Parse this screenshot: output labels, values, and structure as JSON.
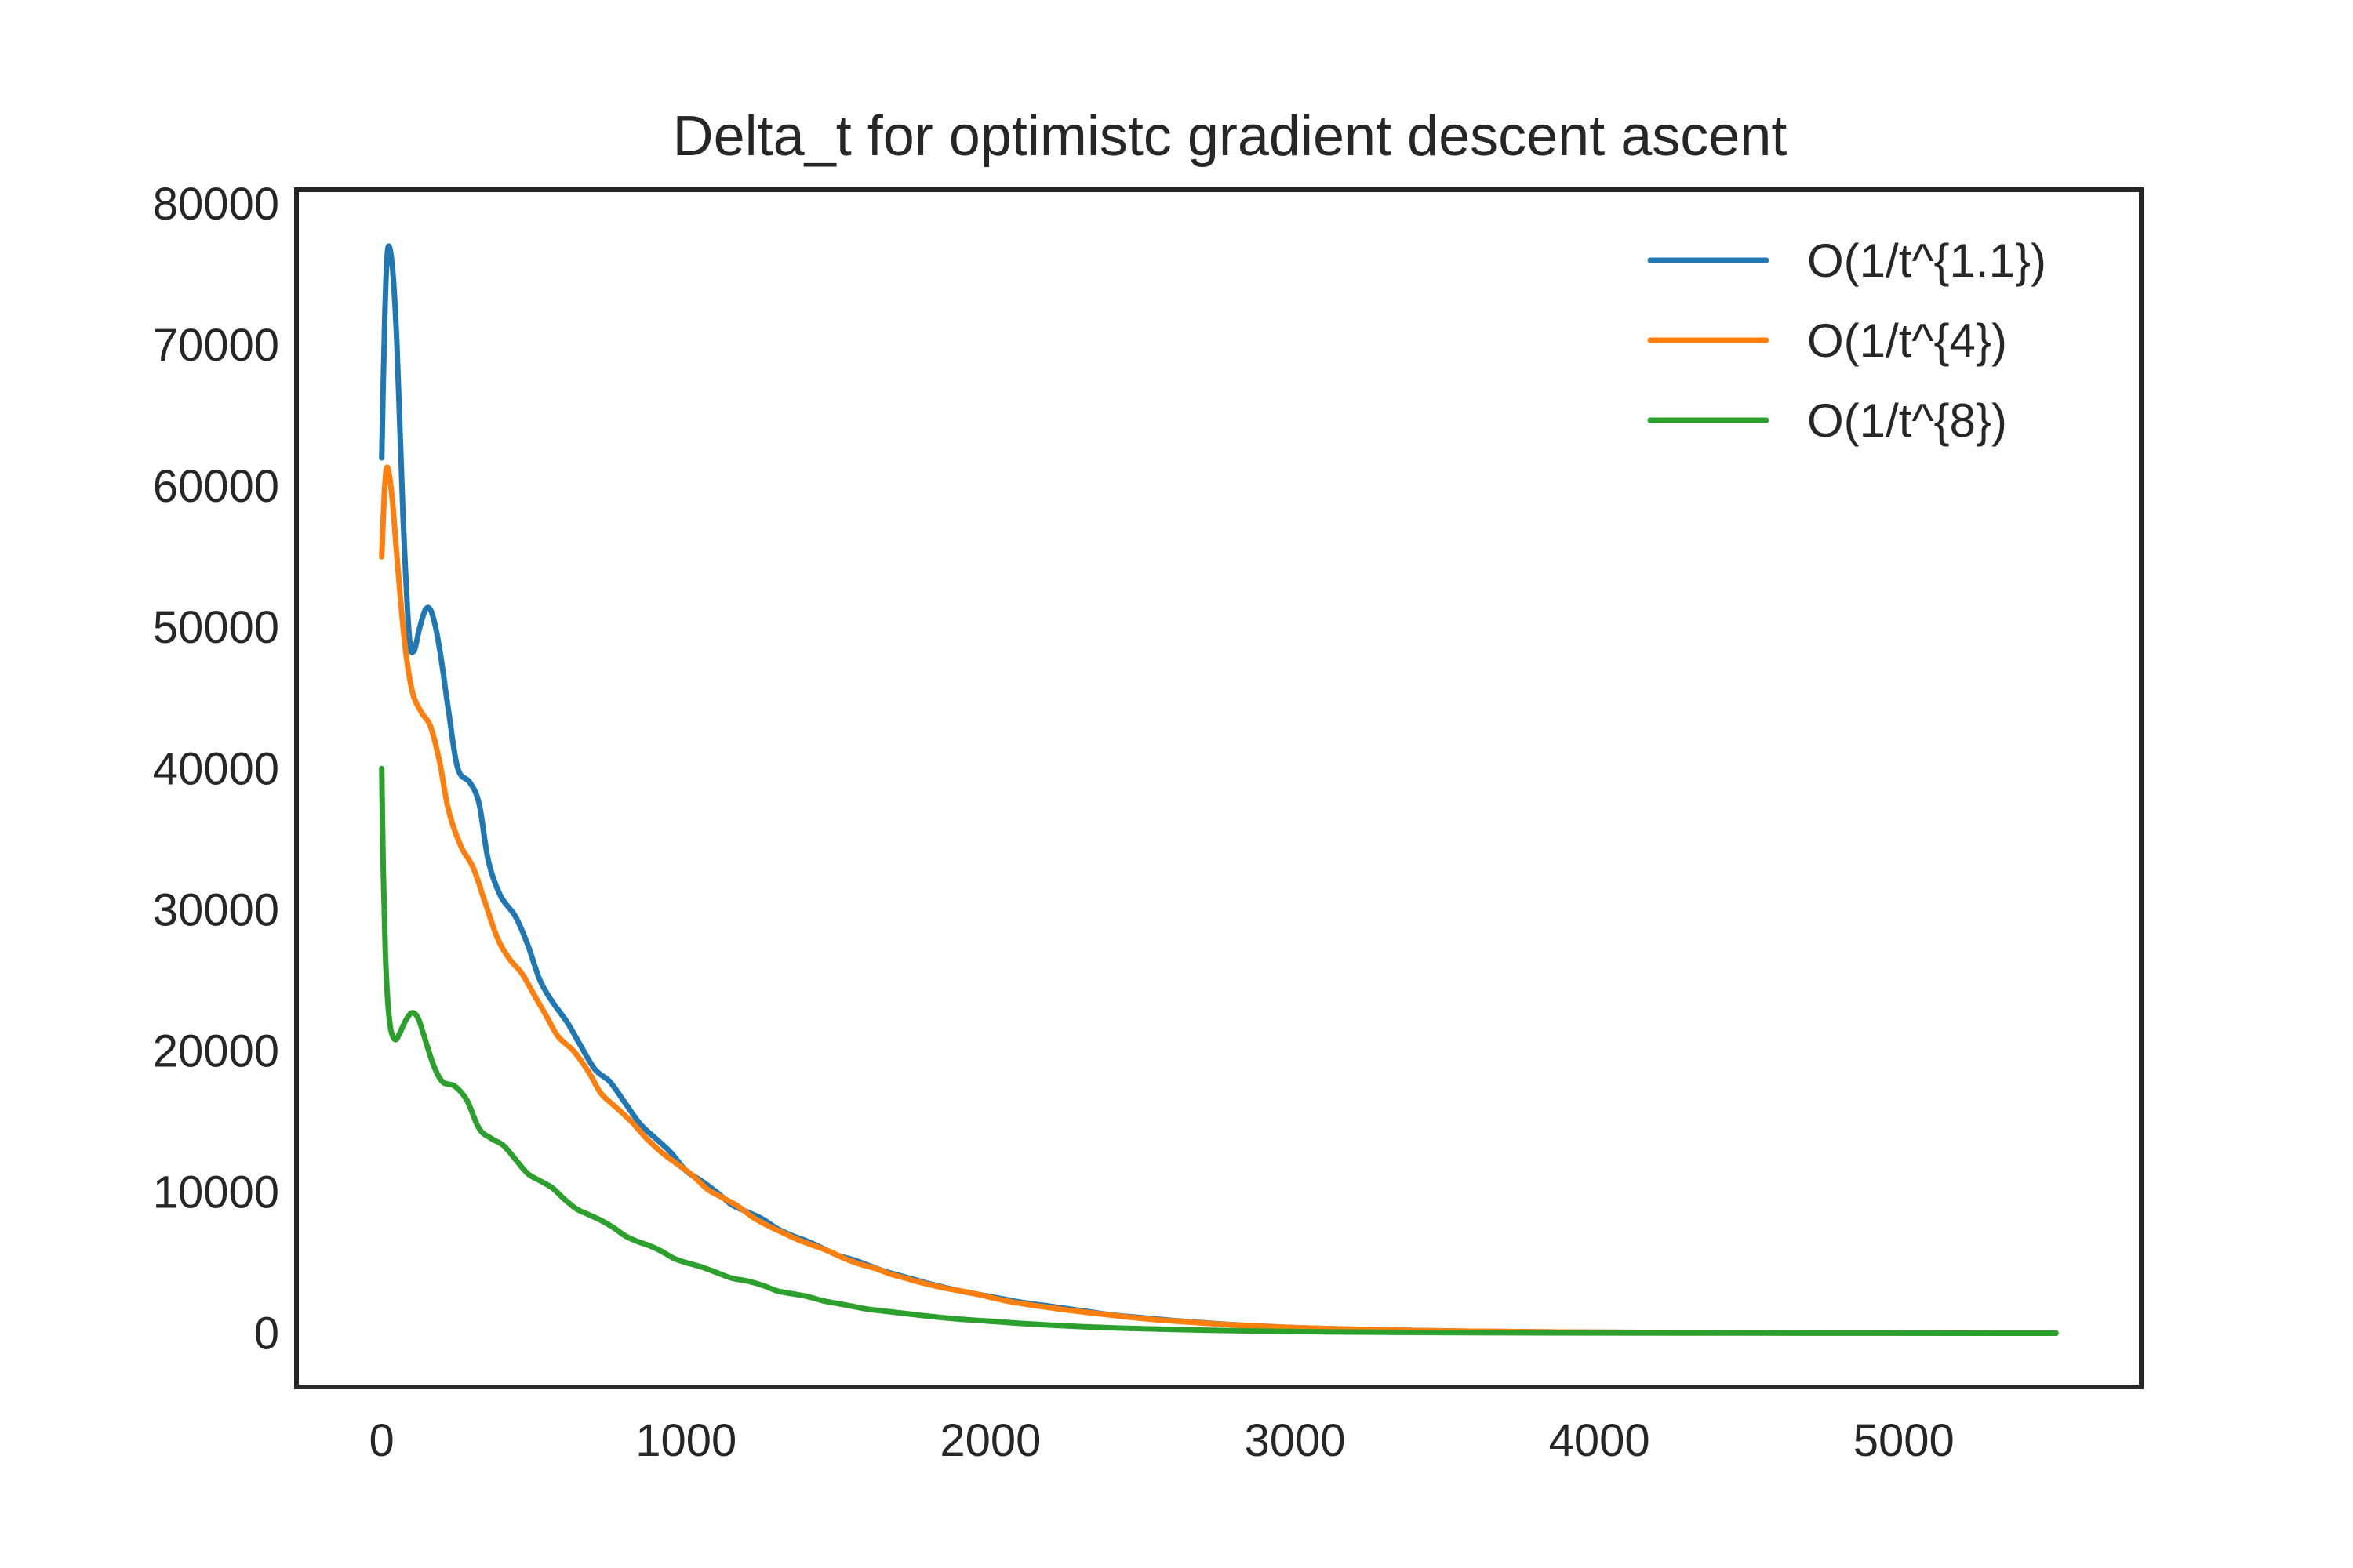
{
  "chart_data": {
    "type": "line",
    "title": "Delta_t for optimistc gradient descent ascent",
    "xlabel": "",
    "ylabel": "",
    "xlim": [
      -280,
      5780
    ],
    "ylim": [
      -3800,
      81000
    ],
    "x_ticks": [
      0,
      1000,
      2000,
      3000,
      4000,
      5000
    ],
    "x_tick_labels": [
      "0",
      "1000",
      "2000",
      "3000",
      "4000",
      "5000"
    ],
    "y_ticks": [
      0,
      10000,
      20000,
      30000,
      40000,
      50000,
      60000,
      70000,
      80000
    ],
    "y_tick_labels": [
      "0",
      "10000",
      "20000",
      "30000",
      "40000",
      "50000",
      "60000",
      "70000",
      "80000"
    ],
    "grid": false,
    "legend_position": "top-right",
    "series": [
      {
        "name": "O(1/t^{1.1})",
        "color": "#1f77b4",
        "points": [
          [
            0,
            62000
          ],
          [
            10,
            72000
          ],
          [
            20,
            76800
          ],
          [
            35,
            75500
          ],
          [
            50,
            70000
          ],
          [
            70,
            58000
          ],
          [
            90,
            49500
          ],
          [
            105,
            48300
          ],
          [
            125,
            50000
          ],
          [
            145,
            51300
          ],
          [
            165,
            51000
          ],
          [
            190,
            48500
          ],
          [
            220,
            44000
          ],
          [
            250,
            40000
          ],
          [
            290,
            39000
          ],
          [
            320,
            37500
          ],
          [
            350,
            33500
          ],
          [
            390,
            31000
          ],
          [
            440,
            29500
          ],
          [
            480,
            27500
          ],
          [
            520,
            25000
          ],
          [
            560,
            23500
          ],
          [
            610,
            22000
          ],
          [
            650,
            20500
          ],
          [
            700,
            18700
          ],
          [
            750,
            17800
          ],
          [
            800,
            16300
          ],
          [
            850,
            14800
          ],
          [
            900,
            13800
          ],
          [
            950,
            12800
          ],
          [
            1000,
            11500
          ],
          [
            1050,
            10800
          ],
          [
            1100,
            10000
          ],
          [
            1150,
            9100
          ],
          [
            1200,
            8600
          ],
          [
            1250,
            8100
          ],
          [
            1300,
            7400
          ],
          [
            1350,
            6900
          ],
          [
            1400,
            6500
          ],
          [
            1450,
            6000
          ],
          [
            1500,
            5500
          ],
          [
            1550,
            5200
          ],
          [
            1600,
            4800
          ],
          [
            1650,
            4400
          ],
          [
            1700,
            4100
          ],
          [
            1750,
            3800
          ],
          [
            1800,
            3500
          ],
          [
            1900,
            3000
          ],
          [
            2000,
            2600
          ],
          [
            2100,
            2200
          ],
          [
            2200,
            1900
          ],
          [
            2300,
            1600
          ],
          [
            2400,
            1300
          ],
          [
            2500,
            1100
          ],
          [
            2600,
            900
          ],
          [
            2700,
            750
          ],
          [
            2800,
            600
          ],
          [
            2900,
            500
          ],
          [
            3000,
            400
          ],
          [
            3200,
            280
          ],
          [
            3400,
            200
          ],
          [
            3600,
            140
          ],
          [
            3800,
            100
          ],
          [
            4000,
            70
          ],
          [
            4300,
            45
          ],
          [
            4600,
            30
          ],
          [
            5000,
            18
          ],
          [
            5500,
            10
          ]
        ]
      },
      {
        "name": "O(1/t^{4})",
        "color": "#ff7f0e",
        "points": [
          [
            0,
            55000
          ],
          [
            10,
            60000
          ],
          [
            20,
            61300
          ],
          [
            35,
            59000
          ],
          [
            50,
            55000
          ],
          [
            75,
            49000
          ],
          [
            100,
            45500
          ],
          [
            130,
            44000
          ],
          [
            160,
            43000
          ],
          [
            190,
            40500
          ],
          [
            220,
            37000
          ],
          [
            260,
            34500
          ],
          [
            300,
            33000
          ],
          [
            340,
            30500
          ],
          [
            380,
            28000
          ],
          [
            420,
            26500
          ],
          [
            460,
            25500
          ],
          [
            500,
            24000
          ],
          [
            540,
            22500
          ],
          [
            580,
            21000
          ],
          [
            630,
            20000
          ],
          [
            680,
            18500
          ],
          [
            720,
            17000
          ],
          [
            770,
            16000
          ],
          [
            820,
            15000
          ],
          [
            870,
            13800
          ],
          [
            920,
            12800
          ],
          [
            970,
            12000
          ],
          [
            1020,
            11200
          ],
          [
            1070,
            10200
          ],
          [
            1120,
            9600
          ],
          [
            1170,
            9000
          ],
          [
            1220,
            8200
          ],
          [
            1270,
            7600
          ],
          [
            1320,
            7100
          ],
          [
            1370,
            6600
          ],
          [
            1420,
            6200
          ],
          [
            1470,
            5800
          ],
          [
            1520,
            5300
          ],
          [
            1570,
            4900
          ],
          [
            1620,
            4600
          ],
          [
            1670,
            4200
          ],
          [
            1720,
            3900
          ],
          [
            1770,
            3600
          ],
          [
            1850,
            3200
          ],
          [
            1950,
            2800
          ],
          [
            2050,
            2300
          ],
          [
            2150,
            1950
          ],
          [
            2250,
            1650
          ],
          [
            2350,
            1400
          ],
          [
            2450,
            1150
          ],
          [
            2550,
            950
          ],
          [
            2650,
            800
          ],
          [
            2750,
            650
          ],
          [
            2850,
            530
          ],
          [
            3000,
            400
          ],
          [
            3200,
            280
          ],
          [
            3400,
            200
          ],
          [
            3600,
            140
          ],
          [
            3800,
            100
          ],
          [
            4000,
            70
          ],
          [
            4300,
            45
          ],
          [
            4600,
            30
          ],
          [
            5000,
            18
          ],
          [
            5500,
            10
          ]
        ]
      },
      {
        "name": "O(1/t^{8})",
        "color": "#2ca02c",
        "points": [
          [
            0,
            40000
          ],
          [
            5,
            33000
          ],
          [
            12,
            27000
          ],
          [
            20,
            23500
          ],
          [
            30,
            21500
          ],
          [
            45,
            20800
          ],
          [
            60,
            21300
          ],
          [
            80,
            22200
          ],
          [
            100,
            22700
          ],
          [
            120,
            22300
          ],
          [
            140,
            21000
          ],
          [
            170,
            19000
          ],
          [
            200,
            17800
          ],
          [
            240,
            17500
          ],
          [
            280,
            16500
          ],
          [
            320,
            14500
          ],
          [
            360,
            13800
          ],
          [
            400,
            13300
          ],
          [
            440,
            12300
          ],
          [
            480,
            11300
          ],
          [
            520,
            10800
          ],
          [
            560,
            10300
          ],
          [
            600,
            9500
          ],
          [
            640,
            8800
          ],
          [
            680,
            8400
          ],
          [
            720,
            8000
          ],
          [
            760,
            7500
          ],
          [
            800,
            6900
          ],
          [
            840,
            6500
          ],
          [
            880,
            6200
          ],
          [
            920,
            5800
          ],
          [
            960,
            5300
          ],
          [
            1000,
            5000
          ],
          [
            1050,
            4700
          ],
          [
            1100,
            4300
          ],
          [
            1150,
            3900
          ],
          [
            1200,
            3700
          ],
          [
            1250,
            3400
          ],
          [
            1300,
            3000
          ],
          [
            1350,
            2800
          ],
          [
            1400,
            2600
          ],
          [
            1450,
            2300
          ],
          [
            1500,
            2100
          ],
          [
            1550,
            1900
          ],
          [
            1600,
            1700
          ],
          [
            1700,
            1450
          ],
          [
            1800,
            1200
          ],
          [
            1900,
            1000
          ],
          [
            2000,
            850
          ],
          [
            2100,
            700
          ],
          [
            2200,
            570
          ],
          [
            2300,
            470
          ],
          [
            2400,
            390
          ],
          [
            2500,
            320
          ],
          [
            2700,
            220
          ],
          [
            2900,
            150
          ],
          [
            3100,
            100
          ],
          [
            3400,
            60
          ],
          [
            3700,
            40
          ],
          [
            4000,
            25
          ],
          [
            4500,
            15
          ],
          [
            5000,
            8
          ],
          [
            5500,
            5
          ]
        ]
      }
    ]
  }
}
